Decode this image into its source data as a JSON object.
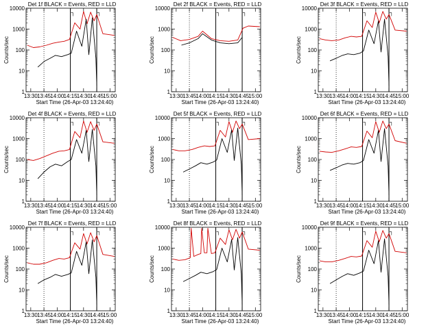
{
  "chart_data": [
    {
      "type": "line",
      "title": "Det 1f BLACK = Events, RED = LLD",
      "xlabel": "Start Time (26-Apr-03 13:24:40)",
      "ylabel": "Counts/sec",
      "yscale": "log",
      "ylim": [
        1,
        10000
      ],
      "x_ticks": [
        "13:30",
        "13:45",
        "14:00",
        "14:15",
        "14:30",
        "14:45",
        "15:00"
      ],
      "y_ticks": [
        "1",
        "10",
        "100",
        "1000",
        "10000"
      ],
      "series": [
        {
          "name": "Events",
          "color": "#000000",
          "x": [
            "13:38",
            "13:45",
            "13:52",
            "13:58",
            "14:05",
            "14:12",
            "14:16",
            "14:22",
            "14:28",
            "14:33",
            "14:36",
            "14:40",
            "14:44",
            "14:45"
          ],
          "y": [
            15,
            28,
            40,
            55,
            48,
            60,
            70,
            800,
            150,
            3000,
            60,
            3500,
            40,
            2
          ]
        },
        {
          "name": "LLD",
          "color": "#d10000",
          "x": [
            "13:26",
            "13:33",
            "13:40",
            "13:48",
            "13:55",
            "14:02",
            "14:08",
            "14:14",
            "14:20",
            "14:26",
            "14:30",
            "14:34",
            "14:38",
            "14:42",
            "14:45",
            "14:52",
            "15:05"
          ],
          "y": [
            170,
            130,
            140,
            170,
            210,
            240,
            260,
            320,
            2000,
            1000,
            7000,
            1800,
            6500,
            2500,
            5000,
            600,
            500
          ]
        }
      ]
    },
    {
      "type": "line",
      "title": "Det 2f BLACK = Events, RED = LLD",
      "xlabel": "Start Time (26-Apr-03 13:24:40)",
      "ylabel": "Counts/sec",
      "yscale": "log",
      "ylim": [
        1,
        10000
      ],
      "x_ticks": [
        "13:30",
        "13:45",
        "14:00",
        "14:15",
        "14:30",
        "14:45",
        "15:00"
      ],
      "y_ticks": [
        "1",
        "10",
        "100",
        "1000",
        "10000"
      ],
      "series": [
        {
          "name": "Events",
          "color": "#000000",
          "x": [
            "13:36",
            "13:45",
            "13:55",
            "14:00",
            "14:10",
            "14:20",
            "14:30",
            "14:40",
            "14:45"
          ],
          "y": [
            170,
            220,
            350,
            600,
            300,
            220,
            200,
            220,
            400
          ]
        },
        {
          "name": "LLD",
          "color": "#d10000",
          "x": [
            "13:26",
            "13:35",
            "13:45",
            "13:55",
            "14:00",
            "14:10",
            "14:20",
            "14:30",
            "14:40",
            "14:46",
            "14:52",
            "15:05"
          ],
          "y": [
            400,
            280,
            320,
            450,
            800,
            350,
            280,
            260,
            300,
            1100,
            1400,
            1300
          ]
        }
      ]
    },
    {
      "type": "line",
      "title": "Det 3f BLACK = Events, RED = LLD",
      "xlabel": "Start Time (26-Apr-03 13:24:40)",
      "ylabel": "Counts/sec",
      "yscale": "log",
      "ylim": [
        1,
        10000
      ],
      "x_ticks": [
        "13:30",
        "13:45",
        "14:00",
        "14:15",
        "14:30",
        "14:45",
        "15:00"
      ],
      "y_ticks": [
        "1",
        "10",
        "100",
        "1000",
        "10000"
      ],
      "series": [
        {
          "name": "Events",
          "color": "#000000",
          "x": [
            "13:38",
            "13:45",
            "13:52",
            "13:58",
            "14:05",
            "14:12",
            "14:16",
            "14:22",
            "14:28",
            "14:33",
            "14:36",
            "14:40",
            "14:44",
            "14:45"
          ],
          "y": [
            30,
            40,
            55,
            65,
            60,
            70,
            90,
            900,
            200,
            2500,
            80,
            3000,
            50,
            2
          ]
        },
        {
          "name": "LLD",
          "color": "#d10000",
          "x": [
            "13:26",
            "13:33",
            "13:40",
            "13:48",
            "13:55",
            "14:02",
            "14:08",
            "14:14",
            "14:20",
            "14:26",
            "14:30",
            "14:34",
            "14:38",
            "14:42",
            "14:45",
            "14:52",
            "15:05"
          ],
          "y": [
            350,
            300,
            280,
            300,
            380,
            450,
            420,
            450,
            2500,
            1200,
            6500,
            2000,
            7000,
            3000,
            5000,
            900,
            800
          ]
        }
      ]
    },
    {
      "type": "line",
      "title": "Det 4f BLACK = Events, RED = LLD",
      "xlabel": "Start Time (26-Apr-03 13:24:40)",
      "ylabel": "Counts/sec",
      "yscale": "log",
      "ylim": [
        1,
        10000
      ],
      "x_ticks": [
        "13:30",
        "13:45",
        "14:00",
        "14:15",
        "14:30",
        "14:45",
        "15:00"
      ],
      "y_ticks": [
        "1",
        "10",
        "100",
        "1000",
        "10000"
      ],
      "series": [
        {
          "name": "Events",
          "color": "#000000",
          "x": [
            "13:38",
            "13:45",
            "13:52",
            "13:58",
            "14:05",
            "14:12",
            "14:16",
            "14:22",
            "14:28",
            "14:33",
            "14:36",
            "14:40",
            "14:44",
            "14:45"
          ],
          "y": [
            12,
            25,
            45,
            60,
            50,
            80,
            100,
            900,
            200,
            2500,
            80,
            2800,
            50,
            2
          ]
        },
        {
          "name": "LLD",
          "color": "#d10000",
          "x": [
            "13:26",
            "13:33",
            "13:40",
            "13:48",
            "13:55",
            "14:02",
            "14:08",
            "14:14",
            "14:20",
            "14:26",
            "14:30",
            "14:34",
            "14:38",
            "14:42",
            "14:45",
            "14:52",
            "15:05"
          ],
          "y": [
            100,
            90,
            110,
            150,
            200,
            250,
            260,
            300,
            2200,
            1100,
            7000,
            2000,
            6500,
            2500,
            5000,
            700,
            600
          ]
        }
      ]
    },
    {
      "type": "line",
      "title": "Det 5f BLACK = Events, RED = LLD",
      "xlabel": "Start Time (26-Apr-03 13:24:40)",
      "ylabel": "Counts/sec",
      "yscale": "log",
      "ylim": [
        1,
        10000
      ],
      "x_ticks": [
        "13:30",
        "13:45",
        "14:00",
        "14:15",
        "14:30",
        "14:45",
        "15:00"
      ],
      "y_ticks": [
        "1",
        "10",
        "100",
        "1000",
        "10000"
      ],
      "series": [
        {
          "name": "Events",
          "color": "#000000",
          "x": [
            "13:38",
            "13:45",
            "13:52",
            "13:58",
            "14:05",
            "14:12",
            "14:16",
            "14:22",
            "14:28",
            "14:33",
            "14:36",
            "14:40",
            "14:44",
            "14:45"
          ],
          "y": [
            25,
            35,
            50,
            70,
            60,
            75,
            95,
            1000,
            220,
            2600,
            90,
            3200,
            60,
            2
          ]
        },
        {
          "name": "LLD",
          "color": "#d10000",
          "x": [
            "13:26",
            "13:33",
            "13:40",
            "13:48",
            "13:55",
            "14:02",
            "14:08",
            "14:14",
            "14:20",
            "14:26",
            "14:30",
            "14:34",
            "14:38",
            "14:42",
            "14:45",
            "14:52",
            "15:05"
          ],
          "y": [
            300,
            260,
            260,
            300,
            380,
            450,
            420,
            450,
            2500,
            1200,
            6500,
            2000,
            7000,
            3000,
            5000,
            900,
            1000
          ]
        }
      ]
    },
    {
      "type": "line",
      "title": "Det 6f BLACK = Events, RED = LLD",
      "xlabel": "Start Time (26-Apr-03 13:24:40)",
      "ylabel": "Counts/sec",
      "yscale": "log",
      "ylim": [
        1,
        10000
      ],
      "x_ticks": [
        "13:30",
        "13:45",
        "14:00",
        "14:15",
        "14:30",
        "14:45",
        "15:00"
      ],
      "y_ticks": [
        "1",
        "10",
        "100",
        "1000",
        "10000"
      ],
      "series": [
        {
          "name": "Events",
          "color": "#000000",
          "x": [
            "13:38",
            "13:45",
            "13:52",
            "13:58",
            "14:05",
            "14:12",
            "14:16",
            "14:22",
            "14:28",
            "14:33",
            "14:36",
            "14:40",
            "14:44",
            "14:45"
          ],
          "y": [
            30,
            40,
            55,
            65,
            60,
            70,
            90,
            900,
            200,
            2500,
            80,
            3000,
            50,
            2
          ]
        },
        {
          "name": "LLD",
          "color": "#d10000",
          "x": [
            "13:26",
            "13:33",
            "13:40",
            "13:48",
            "13:55",
            "14:02",
            "14:08",
            "14:14",
            "14:20",
            "14:26",
            "14:30",
            "14:34",
            "14:38",
            "14:42",
            "14:45",
            "14:52",
            "15:05"
          ],
          "y": [
            250,
            230,
            220,
            260,
            320,
            400,
            380,
            420,
            2300,
            1100,
            6500,
            2000,
            7000,
            3000,
            5000,
            800,
            600
          ]
        }
      ]
    },
    {
      "type": "line",
      "title": "Det 7f BLACK = Events, RED = LLD",
      "xlabel": "Start Time (26-Apr-03 13:24:40)",
      "ylabel": "Counts/sec",
      "yscale": "log",
      "ylim": [
        1,
        10000
      ],
      "x_ticks": [
        "13:30",
        "13:45",
        "14:00",
        "14:15",
        "14:30",
        "14:45",
        "15:00"
      ],
      "y_ticks": [
        "1",
        "10",
        "100",
        "1000",
        "10000"
      ],
      "series": [
        {
          "name": "Events",
          "color": "#000000",
          "x": [
            "13:38",
            "13:45",
            "13:52",
            "13:58",
            "14:05",
            "14:12",
            "14:16",
            "14:22",
            "14:28",
            "14:33",
            "14:36",
            "14:40",
            "14:44",
            "14:45"
          ],
          "y": [
            20,
            30,
            40,
            55,
            45,
            55,
            65,
            700,
            150,
            2000,
            60,
            2500,
            40,
            2
          ]
        },
        {
          "name": "LLD",
          "color": "#d10000",
          "x": [
            "13:26",
            "13:33",
            "13:40",
            "13:48",
            "13:55",
            "14:02",
            "14:08",
            "14:14",
            "14:20",
            "14:26",
            "14:30",
            "14:34",
            "14:38",
            "14:42",
            "14:45",
            "14:52",
            "15:05"
          ],
          "y": [
            200,
            170,
            170,
            200,
            260,
            320,
            300,
            350,
            1800,
            900,
            5000,
            1600,
            5500,
            2000,
            4000,
            500,
            400
          ]
        }
      ]
    },
    {
      "type": "line",
      "title": "Det 8f BLACK = Events, RED = LLD",
      "xlabel": "Start Time (26-Apr-03 13:24:40)",
      "ylabel": "Counts/sec",
      "yscale": "log",
      "ylim": [
        1,
        10000
      ],
      "x_ticks": [
        "13:30",
        "13:45",
        "14:00",
        "14:15",
        "14:30",
        "14:45",
        "15:00"
      ],
      "y_ticks": [
        "1",
        "10",
        "100",
        "1000",
        "10000"
      ],
      "series": [
        {
          "name": "Events",
          "color": "#000000",
          "x": [
            "13:38",
            "13:45",
            "13:52",
            "13:58",
            "14:05",
            "14:12",
            "14:16",
            "14:22",
            "14:28",
            "14:33",
            "14:36",
            "14:40",
            "14:44",
            "14:45"
          ],
          "y": [
            25,
            35,
            50,
            70,
            60,
            75,
            95,
            1000,
            220,
            2600,
            90,
            3200,
            60,
            2
          ]
        },
        {
          "name": "LLD",
          "color": "#d10000",
          "x": [
            "13:26",
            "13:33",
            "13:40",
            "13:46",
            "13:47",
            "13:50",
            "13:55",
            "13:58",
            "13:59",
            "14:02",
            "14:05",
            "14:06",
            "14:10",
            "14:14",
            "14:20",
            "14:26",
            "14:30",
            "14:34",
            "14:38",
            "14:42",
            "14:45",
            "14:52",
            "15:05"
          ],
          "y": [
            300,
            260,
            280,
            350,
            9000,
            400,
            500,
            550,
            9000,
            600,
            600,
            9000,
            550,
            600,
            3000,
            1500,
            7500,
            2500,
            8000,
            3000,
            6000,
            900,
            800
          ]
        }
      ]
    },
    {
      "type": "line",
      "title": "Det 9f BLACK = Events, RED = LLD",
      "xlabel": "Start Time (26-Apr-03 13:24:40)",
      "ylabel": "Counts/sec",
      "yscale": "log",
      "ylim": [
        1,
        10000
      ],
      "x_ticks": [
        "13:30",
        "13:45",
        "14:00",
        "14:15",
        "14:30",
        "14:45",
        "15:00"
      ],
      "y_ticks": [
        "1",
        "10",
        "100",
        "1000",
        "10000"
      ],
      "series": [
        {
          "name": "Events",
          "color": "#000000",
          "x": [
            "13:38",
            "13:45",
            "13:52",
            "13:58",
            "14:05",
            "14:12",
            "14:16",
            "14:22",
            "14:28",
            "14:33",
            "14:36",
            "14:40",
            "14:44",
            "14:45"
          ],
          "y": [
            20,
            30,
            45,
            60,
            50,
            65,
            80,
            800,
            180,
            2300,
            70,
            2800,
            45,
            2
          ]
        },
        {
          "name": "LLD",
          "color": "#d10000",
          "x": [
            "13:26",
            "13:33",
            "13:40",
            "13:48",
            "13:55",
            "14:02",
            "14:08",
            "14:14",
            "14:20",
            "14:26",
            "14:30",
            "14:34",
            "14:38",
            "14:42",
            "14:45",
            "14:52",
            "15:05"
          ],
          "y": [
            250,
            220,
            220,
            260,
            320,
            400,
            380,
            420,
            2300,
            1100,
            6500,
            2000,
            7000,
            3000,
            5000,
            700,
            600
          ]
        }
      ]
    }
  ],
  "vertical_markers": {
    "dotted": "13:45",
    "solid": [
      "14:15",
      "14:45"
    ]
  },
  "corner_marks": [
    "┐",
    "┐"
  ]
}
